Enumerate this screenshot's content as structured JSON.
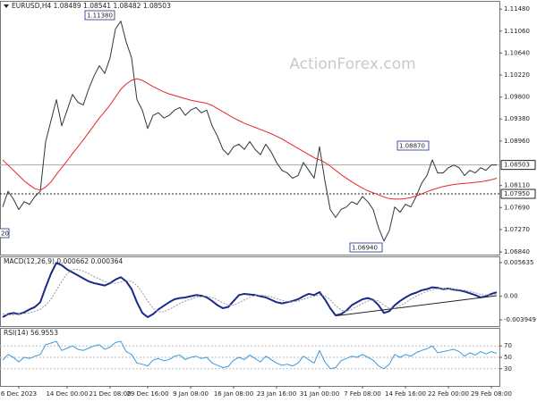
{
  "chart_data": [
    {
      "type": "line",
      "title": "EURUSD,H4 1.08489 1.08541 1.08482 1.08503",
      "watermark": "ActionForex.com",
      "categories": [
        null,
        null,
        null,
        "6 Dec 2023",
        null,
        null,
        null,
        null,
        null,
        null,
        null,
        null,
        "14 Dec 00:00",
        null,
        null,
        null,
        null,
        null,
        null,
        null,
        "21 Dec 08:00",
        null,
        null,
        null,
        null,
        null,
        null,
        "29 Dec 16:00",
        null,
        null,
        null,
        null,
        null,
        null,
        null,
        "9 Jan 08:00",
        null,
        null,
        null,
        null,
        null,
        null,
        null,
        "16 Jan 08:00",
        null,
        null,
        null,
        null,
        null,
        null,
        null,
        "23 Jan 16:00",
        null,
        null,
        null,
        null,
        null,
        null,
        null,
        "31 Jan 00:00",
        null,
        null,
        null,
        null,
        null,
        null,
        null,
        "7 Feb 08:00",
        null,
        null,
        null,
        null,
        null,
        null,
        null,
        "14 Feb 16:00",
        null,
        null,
        null,
        null,
        null,
        null,
        null,
        "22 Feb 00:00",
        null,
        null,
        null,
        null,
        null,
        null,
        null,
        "29 Feb 08:00",
        null
      ],
      "series": [
        {
          "color": "#2f3640",
          "values": [
            1.077,
            1.08,
            1.0785,
            1.0765,
            1.078,
            1.0775,
            1.079,
            1.08,
            1.0895,
            1.0935,
            1.0975,
            1.0925,
            1.0955,
            1.0985,
            1.097,
            1.0965,
            1.0995,
            1.102,
            1.104,
            1.1025,
            1.1055,
            1.111,
            1.1125,
            1.1085,
            1.1055,
            1.0975,
            1.0955,
            1.092,
            1.0945,
            1.095,
            1.094,
            1.0945,
            1.0955,
            1.096,
            1.0945,
            1.0955,
            1.096,
            1.095,
            1.0955,
            1.0925,
            1.0905,
            1.088,
            1.087,
            1.0885,
            1.089,
            1.088,
            1.0895,
            1.088,
            1.087,
            1.089,
            1.0875,
            1.0855,
            1.084,
            1.0835,
            1.0825,
            1.083,
            1.0855,
            1.084,
            1.0825,
            1.0885,
            1.082,
            1.0765,
            1.075,
            1.0765,
            1.077,
            1.078,
            1.0775,
            1.079,
            1.078,
            1.0765,
            1.073,
            1.0705,
            1.0725,
            1.077,
            1.076,
            1.0775,
            1.077,
            1.079,
            1.0815,
            1.083,
            1.086,
            1.0835,
            1.0835,
            1.0845,
            1.085,
            1.0845,
            1.083,
            1.084,
            1.0835,
            1.0845,
            1.084,
            1.085,
            1.08503
          ]
        },
        {
          "color": "#e8262b",
          "values": [
            1.086,
            1.085,
            1.084,
            1.083,
            1.082,
            1.0812,
            1.0805,
            1.0802,
            1.0808,
            1.0818,
            1.0832,
            1.0845,
            1.0858,
            1.0872,
            1.0885,
            1.0898,
            1.0912,
            1.0926,
            1.094,
            1.0952,
            1.0965,
            1.098,
            1.0995,
            1.1005,
            1.1012,
            1.1015,
            1.1012,
            1.1006,
            1.1,
            1.0995,
            1.099,
            1.0986,
            1.0983,
            1.098,
            1.0977,
            1.0974,
            1.0972,
            1.097,
            1.0968,
            1.0964,
            1.0958,
            1.0952,
            1.0946,
            1.094,
            1.0935,
            1.093,
            1.0926,
            1.0922,
            1.0918,
            1.0914,
            1.091,
            1.0905,
            1.09,
            1.0894,
            1.0888,
            1.0882,
            1.0876,
            1.087,
            1.0864,
            1.086,
            1.0855,
            1.0848,
            1.084,
            1.0832,
            1.0825,
            1.0818,
            1.0812,
            1.0806,
            1.0801,
            1.0797,
            1.0793,
            1.0789,
            1.0786,
            1.0785,
            1.0785,
            1.0786,
            1.0788,
            1.0791,
            1.0795,
            1.0799,
            1.0803,
            1.0806,
            1.0809,
            1.0811,
            1.0813,
            1.0814,
            1.0815,
            1.0816,
            1.0817,
            1.0818,
            1.082,
            1.0822,
            1.0825
          ]
        }
      ],
      "ylim": [
        1.0679,
        1.1162
      ],
      "yticks": [
        {
          "value": 1.1148,
          "label": "1.11480"
        },
        {
          "value": 1.1106,
          "label": "1.11060"
        },
        {
          "value": 1.1064,
          "label": "1.10640"
        },
        {
          "value": 1.1022,
          "label": "1.10220"
        },
        {
          "value": 1.098,
          "label": "1.09800"
        },
        {
          "value": 1.0938,
          "label": "1.09380"
        },
        {
          "value": 1.0896,
          "label": "1.08960"
        },
        {
          "value": 1.0811,
          "label": "1.08110"
        },
        {
          "value": 1.0769,
          "label": "1.07690"
        },
        {
          "value": 1.0727,
          "label": "1.07270"
        },
        {
          "value": 1.0684,
          "label": "1.06840"
        }
      ],
      "current_price": 1.08503,
      "support_line": {
        "value": 1.0795,
        "label": "1.07950"
      },
      "annotations": [
        "1.11380",
        "1.08870",
        "1.06940",
        "20"
      ]
    },
    {
      "type": "line",
      "title": "MACD(12,26,9) 0.000662 0.000364",
      "series": [
        {
          "color": "#1b2a8a",
          "width": 2,
          "values": [
            -0.0035,
            -0.003,
            -0.0028,
            -0.003,
            -0.0027,
            -0.0022,
            -0.0018,
            -0.001,
            0.0015,
            0.0038,
            0.0056,
            0.0052,
            0.0045,
            0.004,
            0.0035,
            0.003,
            0.0025,
            0.0022,
            0.002,
            0.0018,
            0.0022,
            0.0028,
            0.0032,
            0.0025,
            0.0012,
            -0.001,
            -0.0028,
            -0.0035,
            -0.003,
            -0.0022,
            -0.0016,
            -0.001,
            -0.0005,
            -0.0003,
            -0.0002,
            0.0,
            0.0002,
            0.0001,
            -0.0002,
            -0.0008,
            -0.0015,
            -0.002,
            -0.0018,
            -0.0008,
            0.0002,
            0.0004,
            0.0003,
            0.0002,
            0.0,
            -0.0002,
            -0.0006,
            -0.001,
            -0.0012,
            -0.001,
            -0.0008,
            -0.0005,
            0.0,
            0.0004,
            0.0002,
            0.0007,
            -0.0005,
            -0.002,
            -0.0032,
            -0.003,
            -0.0024,
            -0.0015,
            -0.001,
            -0.0005,
            -0.0003,
            -0.0006,
            -0.0015,
            -0.0028,
            -0.0025,
            -0.0015,
            -0.0008,
            -0.0002,
            0.0003,
            0.0006,
            0.001,
            0.0012,
            0.0015,
            0.0014,
            0.0012,
            0.0013,
            0.0011,
            0.001,
            0.0008,
            0.0005,
            0.0002,
            -0.0002,
            0.0,
            0.0004,
            0.000662
          ]
        },
        {
          "color": "#9a9a9a",
          "width": 1,
          "dashed": true,
          "values": [
            -0.003,
            -0.0031,
            -0.0031,
            -0.003,
            -0.0029,
            -0.0028,
            -0.0025,
            -0.0022,
            -0.0015,
            -0.0005,
            0.001,
            0.0025,
            0.0038,
            0.0045,
            0.0045,
            0.0042,
            0.0038,
            0.0033,
            0.0029,
            0.0025,
            0.0022,
            0.0022,
            0.0024,
            0.0026,
            0.0025,
            0.0018,
            0.0006,
            -0.0008,
            -0.002,
            -0.0026,
            -0.0026,
            -0.0022,
            -0.0017,
            -0.0012,
            -0.0008,
            -0.0005,
            -0.0002,
            -0.0001,
            0.0,
            -0.0002,
            -0.0006,
            -0.0011,
            -0.0015,
            -0.0015,
            -0.0011,
            -0.0006,
            -0.0002,
            0.0001,
            0.0002,
            0.0001,
            -0.0001,
            -0.0004,
            -0.0007,
            -0.0009,
            -0.0009,
            -0.0008,
            -0.0005,
            -0.0002,
            0.0,
            0.0002,
            0.0001,
            -0.0006,
            -0.0016,
            -0.0023,
            -0.0025,
            -0.0022,
            -0.0017,
            -0.0012,
            -0.0008,
            -0.0006,
            -0.0008,
            -0.0015,
            -0.002,
            -0.002,
            -0.0016,
            -0.0011,
            -0.0005,
            0.0,
            0.0004,
            0.0008,
            0.0011,
            0.0013,
            0.0013,
            0.0013,
            0.0012,
            0.0011,
            0.001,
            0.0008,
            0.0006,
            0.0003,
            0.0002,
            0.0002,
            0.000364
          ]
        }
      ],
      "ylim": [
        -0.004997,
        0.006533
      ],
      "yticks": [
        0.005635,
        {
          "value": 0,
          "label": "0.00"
        },
        -0.003949
      ],
      "trendline": [
        [
          62,
          -0.0033
        ],
        [
          92,
          0.0001
        ]
      ]
    },
    {
      "type": "line",
      "title": "RSI(14) 56.9553",
      "series": [
        {
          "color": "#3d9ad8",
          "width": 1,
          "values": [
            45,
            55,
            50,
            42,
            50,
            48,
            52,
            55,
            72,
            75,
            78,
            62,
            66,
            70,
            64,
            62,
            66,
            70,
            72,
            64,
            68,
            76,
            78,
            60,
            55,
            40,
            38,
            35,
            45,
            48,
            44,
            46,
            52,
            54,
            46,
            50,
            52,
            48,
            50,
            40,
            36,
            32,
            34,
            45,
            50,
            46,
            54,
            48,
            42,
            52,
            46,
            40,
            36,
            38,
            35,
            40,
            52,
            46,
            40,
            62,
            42,
            30,
            32,
            44,
            48,
            52,
            50,
            55,
            50,
            45,
            35,
            30,
            38,
            55,
            50,
            55,
            52,
            58,
            62,
            65,
            70,
            58,
            60,
            62,
            64,
            60,
            52,
            58,
            54,
            60,
            56,
            60,
            56.9553
          ]
        }
      ],
      "ylim": [
        0,
        100
      ],
      "yticks": [
        70,
        50,
        30
      ],
      "grid": true
    }
  ]
}
